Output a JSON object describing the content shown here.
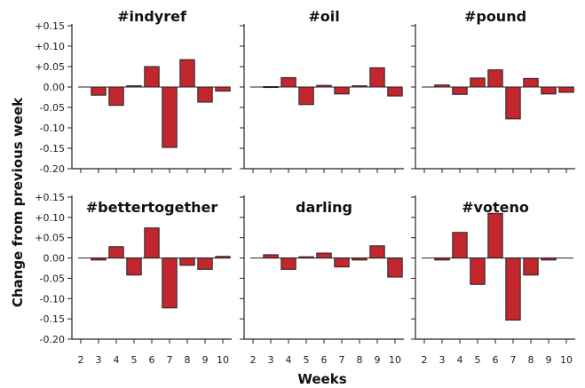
{
  "figure": {
    "xlabel": "Weeks",
    "ylabel": "Change from previous week",
    "bar_color": "#c1272d",
    "bar_edge": "#222222"
  },
  "chart_data": [
    {
      "type": "bar",
      "title": "#indyref",
      "categories": [
        2,
        3,
        4,
        5,
        6,
        7,
        8,
        9,
        10
      ],
      "values": [
        0.0,
        -0.02,
        -0.045,
        0.003,
        0.05,
        -0.148,
        0.067,
        -0.037,
        -0.01
      ],
      "ylim": [
        -0.2,
        0.15
      ],
      "yticks": [
        "+0.15",
        "+0.10",
        "+0.05",
        "0.00",
        "-0.05",
        "-0.10",
        "-0.15",
        "-0.20"
      ],
      "xticks": [
        "2",
        "3",
        "4",
        "5",
        "6",
        "7",
        "8",
        "9",
        "10"
      ]
    },
    {
      "type": "bar",
      "title": "#oil",
      "categories": [
        2,
        3,
        4,
        5,
        6,
        7,
        8,
        9,
        10
      ],
      "values": [
        0.0,
        0.001,
        0.023,
        -0.043,
        0.004,
        -0.017,
        0.003,
        0.047,
        -0.022
      ],
      "ylim": [
        -0.2,
        0.15
      ],
      "xticks": [
        "2",
        "3",
        "4",
        "5",
        "6",
        "7",
        "8",
        "9",
        "10"
      ]
    },
    {
      "type": "bar",
      "title": "#pound",
      "categories": [
        2,
        3,
        4,
        5,
        6,
        7,
        8,
        9,
        10
      ],
      "values": [
        0.0,
        0.005,
        -0.018,
        0.022,
        0.042,
        -0.078,
        0.021,
        -0.017,
        -0.013
      ],
      "ylim": [
        -0.2,
        0.15
      ],
      "xticks": [
        "2",
        "3",
        "4",
        "5",
        "6",
        "7",
        "8",
        "9",
        "10"
      ]
    },
    {
      "type": "bar",
      "title": "#bettertogether",
      "categories": [
        2,
        3,
        4,
        5,
        6,
        7,
        8,
        9,
        10
      ],
      "values": [
        0.0,
        -0.005,
        0.028,
        -0.042,
        0.074,
        -0.123,
        -0.018,
        -0.028,
        0.004
      ],
      "ylim": [
        -0.2,
        0.15
      ],
      "yticks": [
        "+0.15",
        "+0.10",
        "+0.05",
        "0.00",
        "-0.05",
        "-0.10",
        "-0.15",
        "-0.20"
      ],
      "xticks": [
        "2",
        "3",
        "4",
        "5",
        "6",
        "7",
        "8",
        "9",
        "10"
      ]
    },
    {
      "type": "bar",
      "title": "darling",
      "categories": [
        2,
        3,
        4,
        5,
        6,
        7,
        8,
        9,
        10
      ],
      "values": [
        0.0,
        0.008,
        -0.028,
        0.003,
        0.012,
        -0.022,
        -0.005,
        0.03,
        -0.047
      ],
      "ylim": [
        -0.2,
        0.15
      ],
      "xticks": [
        "2",
        "3",
        "4",
        "5",
        "6",
        "7",
        "8",
        "9",
        "10"
      ]
    },
    {
      "type": "bar",
      "title": "#voteno",
      "categories": [
        2,
        3,
        4,
        5,
        6,
        7,
        8,
        9,
        10
      ],
      "values": [
        0.0,
        -0.005,
        0.063,
        -0.065,
        0.11,
        -0.153,
        -0.042,
        -0.005,
        0.0
      ],
      "ylim": [
        -0.2,
        0.15
      ],
      "xticks": [
        "2",
        "3",
        "4",
        "5",
        "6",
        "7",
        "8",
        "9",
        "10"
      ]
    }
  ]
}
